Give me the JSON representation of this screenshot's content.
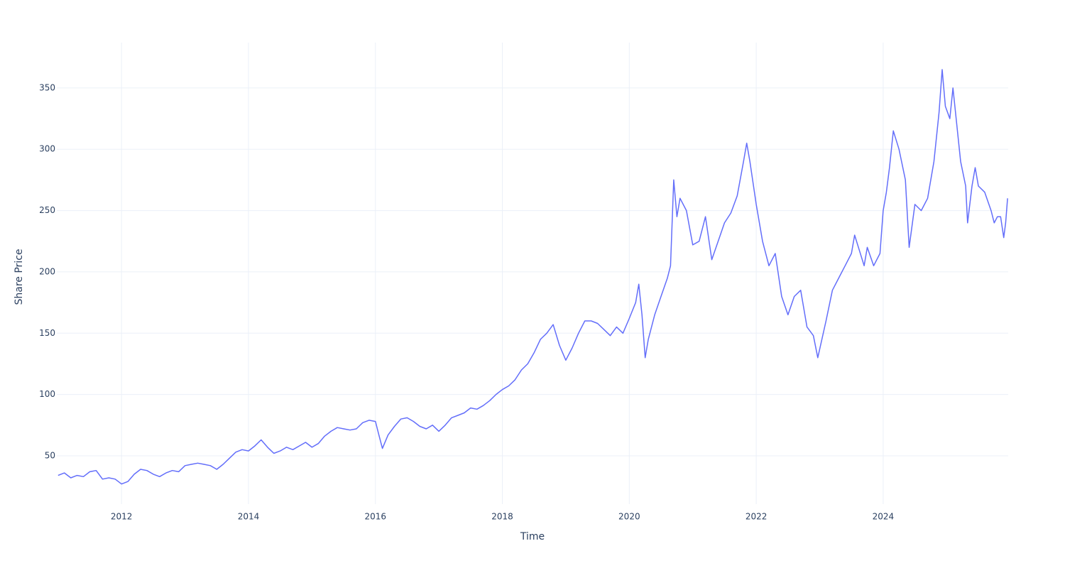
{
  "chart_data": {
    "type": "line",
    "x_label": "Time",
    "y_label": "Share Price",
    "x": [
      2011.0,
      2011.1,
      2011.2,
      2011.3,
      2011.4,
      2011.5,
      2011.6,
      2011.7,
      2011.8,
      2011.9,
      2012.0,
      2012.1,
      2012.2,
      2012.3,
      2012.4,
      2012.5,
      2012.6,
      2012.7,
      2012.8,
      2012.9,
      2013.0,
      2013.1,
      2013.2,
      2013.3,
      2013.4,
      2013.5,
      2013.6,
      2013.7,
      2013.8,
      2013.9,
      2014.0,
      2014.1,
      2014.2,
      2014.3,
      2014.4,
      2014.5,
      2014.6,
      2014.7,
      2014.8,
      2014.9,
      2015.0,
      2015.1,
      2015.2,
      2015.3,
      2015.4,
      2015.5,
      2015.6,
      2015.7,
      2015.8,
      2015.9,
      2016.0,
      2016.05,
      2016.11,
      2016.2,
      2016.3,
      2016.4,
      2016.5,
      2016.6,
      2016.7,
      2016.8,
      2016.9,
      2017.0,
      2017.1,
      2017.2,
      2017.3,
      2017.4,
      2017.5,
      2017.6,
      2017.7,
      2017.8,
      2017.9,
      2018.0,
      2018.1,
      2018.2,
      2018.3,
      2018.4,
      2018.5,
      2018.6,
      2018.7,
      2018.8,
      2018.9,
      2019.0,
      2019.1,
      2019.2,
      2019.3,
      2019.4,
      2019.5,
      2019.6,
      2019.7,
      2019.8,
      2019.9,
      2020.0,
      2020.1,
      2020.15,
      2020.2,
      2020.25,
      2020.3,
      2020.4,
      2020.5,
      2020.6,
      2020.65,
      2020.7,
      2020.75,
      2020.8,
      2020.9,
      2021.0,
      2021.1,
      2021.2,
      2021.3,
      2021.4,
      2021.5,
      2021.6,
      2021.7,
      2021.8,
      2021.85,
      2021.9,
      2022.0,
      2022.1,
      2022.2,
      2022.3,
      2022.4,
      2022.5,
      2022.6,
      2022.7,
      2022.8,
      2022.9,
      2022.97,
      2023.1,
      2023.2,
      2023.3,
      2023.4,
      2023.5,
      2023.55,
      2023.7,
      2023.75,
      2023.85,
      2023.95,
      2024.0,
      2024.05,
      2024.1,
      2024.16,
      2024.25,
      2024.35,
      2024.41,
      2024.5,
      2024.6,
      2024.7,
      2024.8,
      2024.88,
      2024.93,
      2024.98,
      2025.05,
      2025.1,
      2025.15,
      2025.22,
      2025.3,
      2025.33,
      2025.4,
      2025.45,
      2025.5,
      2025.6,
      2025.7,
      2025.75,
      2025.8,
      2025.85,
      2025.9,
      2025.93,
      2025.96
    ],
    "series": [
      {
        "name": "Share Price",
        "color": "#636efa",
        "values": [
          34,
          36,
          32,
          34,
          33,
          37,
          38,
          31,
          32,
          31,
          27,
          29,
          35,
          39,
          38,
          35,
          33,
          36,
          38,
          37,
          42,
          43,
          44,
          43,
          42,
          39,
          43,
          48,
          53,
          55,
          54,
          58,
          63,
          57,
          52,
          54,
          57,
          55,
          58,
          61,
          57,
          60,
          66,
          70,
          73,
          72,
          71,
          72,
          77,
          79,
          78,
          68,
          56,
          67,
          74,
          80,
          81,
          78,
          74,
          72,
          75,
          70,
          75,
          81,
          83,
          85,
          89,
          88,
          91,
          95,
          100,
          104,
          107,
          112,
          120,
          125,
          134,
          145,
          150,
          157,
          140,
          128,
          138,
          150,
          160,
          160,
          158,
          153,
          148,
          155,
          150,
          162,
          175,
          190,
          165,
          130,
          145,
          165,
          180,
          195,
          205,
          275,
          245,
          260,
          250,
          222,
          225,
          245,
          210,
          225,
          240,
          248,
          262,
          290,
          305,
          290,
          255,
          225,
          205,
          215,
          180,
          165,
          180,
          185,
          155,
          148,
          130,
          160,
          185,
          195,
          205,
          215,
          230,
          205,
          220,
          205,
          215,
          250,
          265,
          285,
          315,
          300,
          275,
          220,
          255,
          250,
          260,
          290,
          330,
          365,
          335,
          325,
          350,
          325,
          290,
          270,
          240,
          270,
          285,
          270,
          265,
          250,
          240,
          245,
          245,
          228,
          240,
          260
        ]
      }
    ],
    "xlim": [
      2010.98,
      2025.97
    ],
    "xticks": [
      2012,
      2014,
      2016,
      2018,
      2020,
      2022,
      2024
    ],
    "ylim": [
      10.6,
      387
    ],
    "yticks": [
      50,
      100,
      150,
      200,
      250,
      300,
      350
    ],
    "grid": true
  }
}
